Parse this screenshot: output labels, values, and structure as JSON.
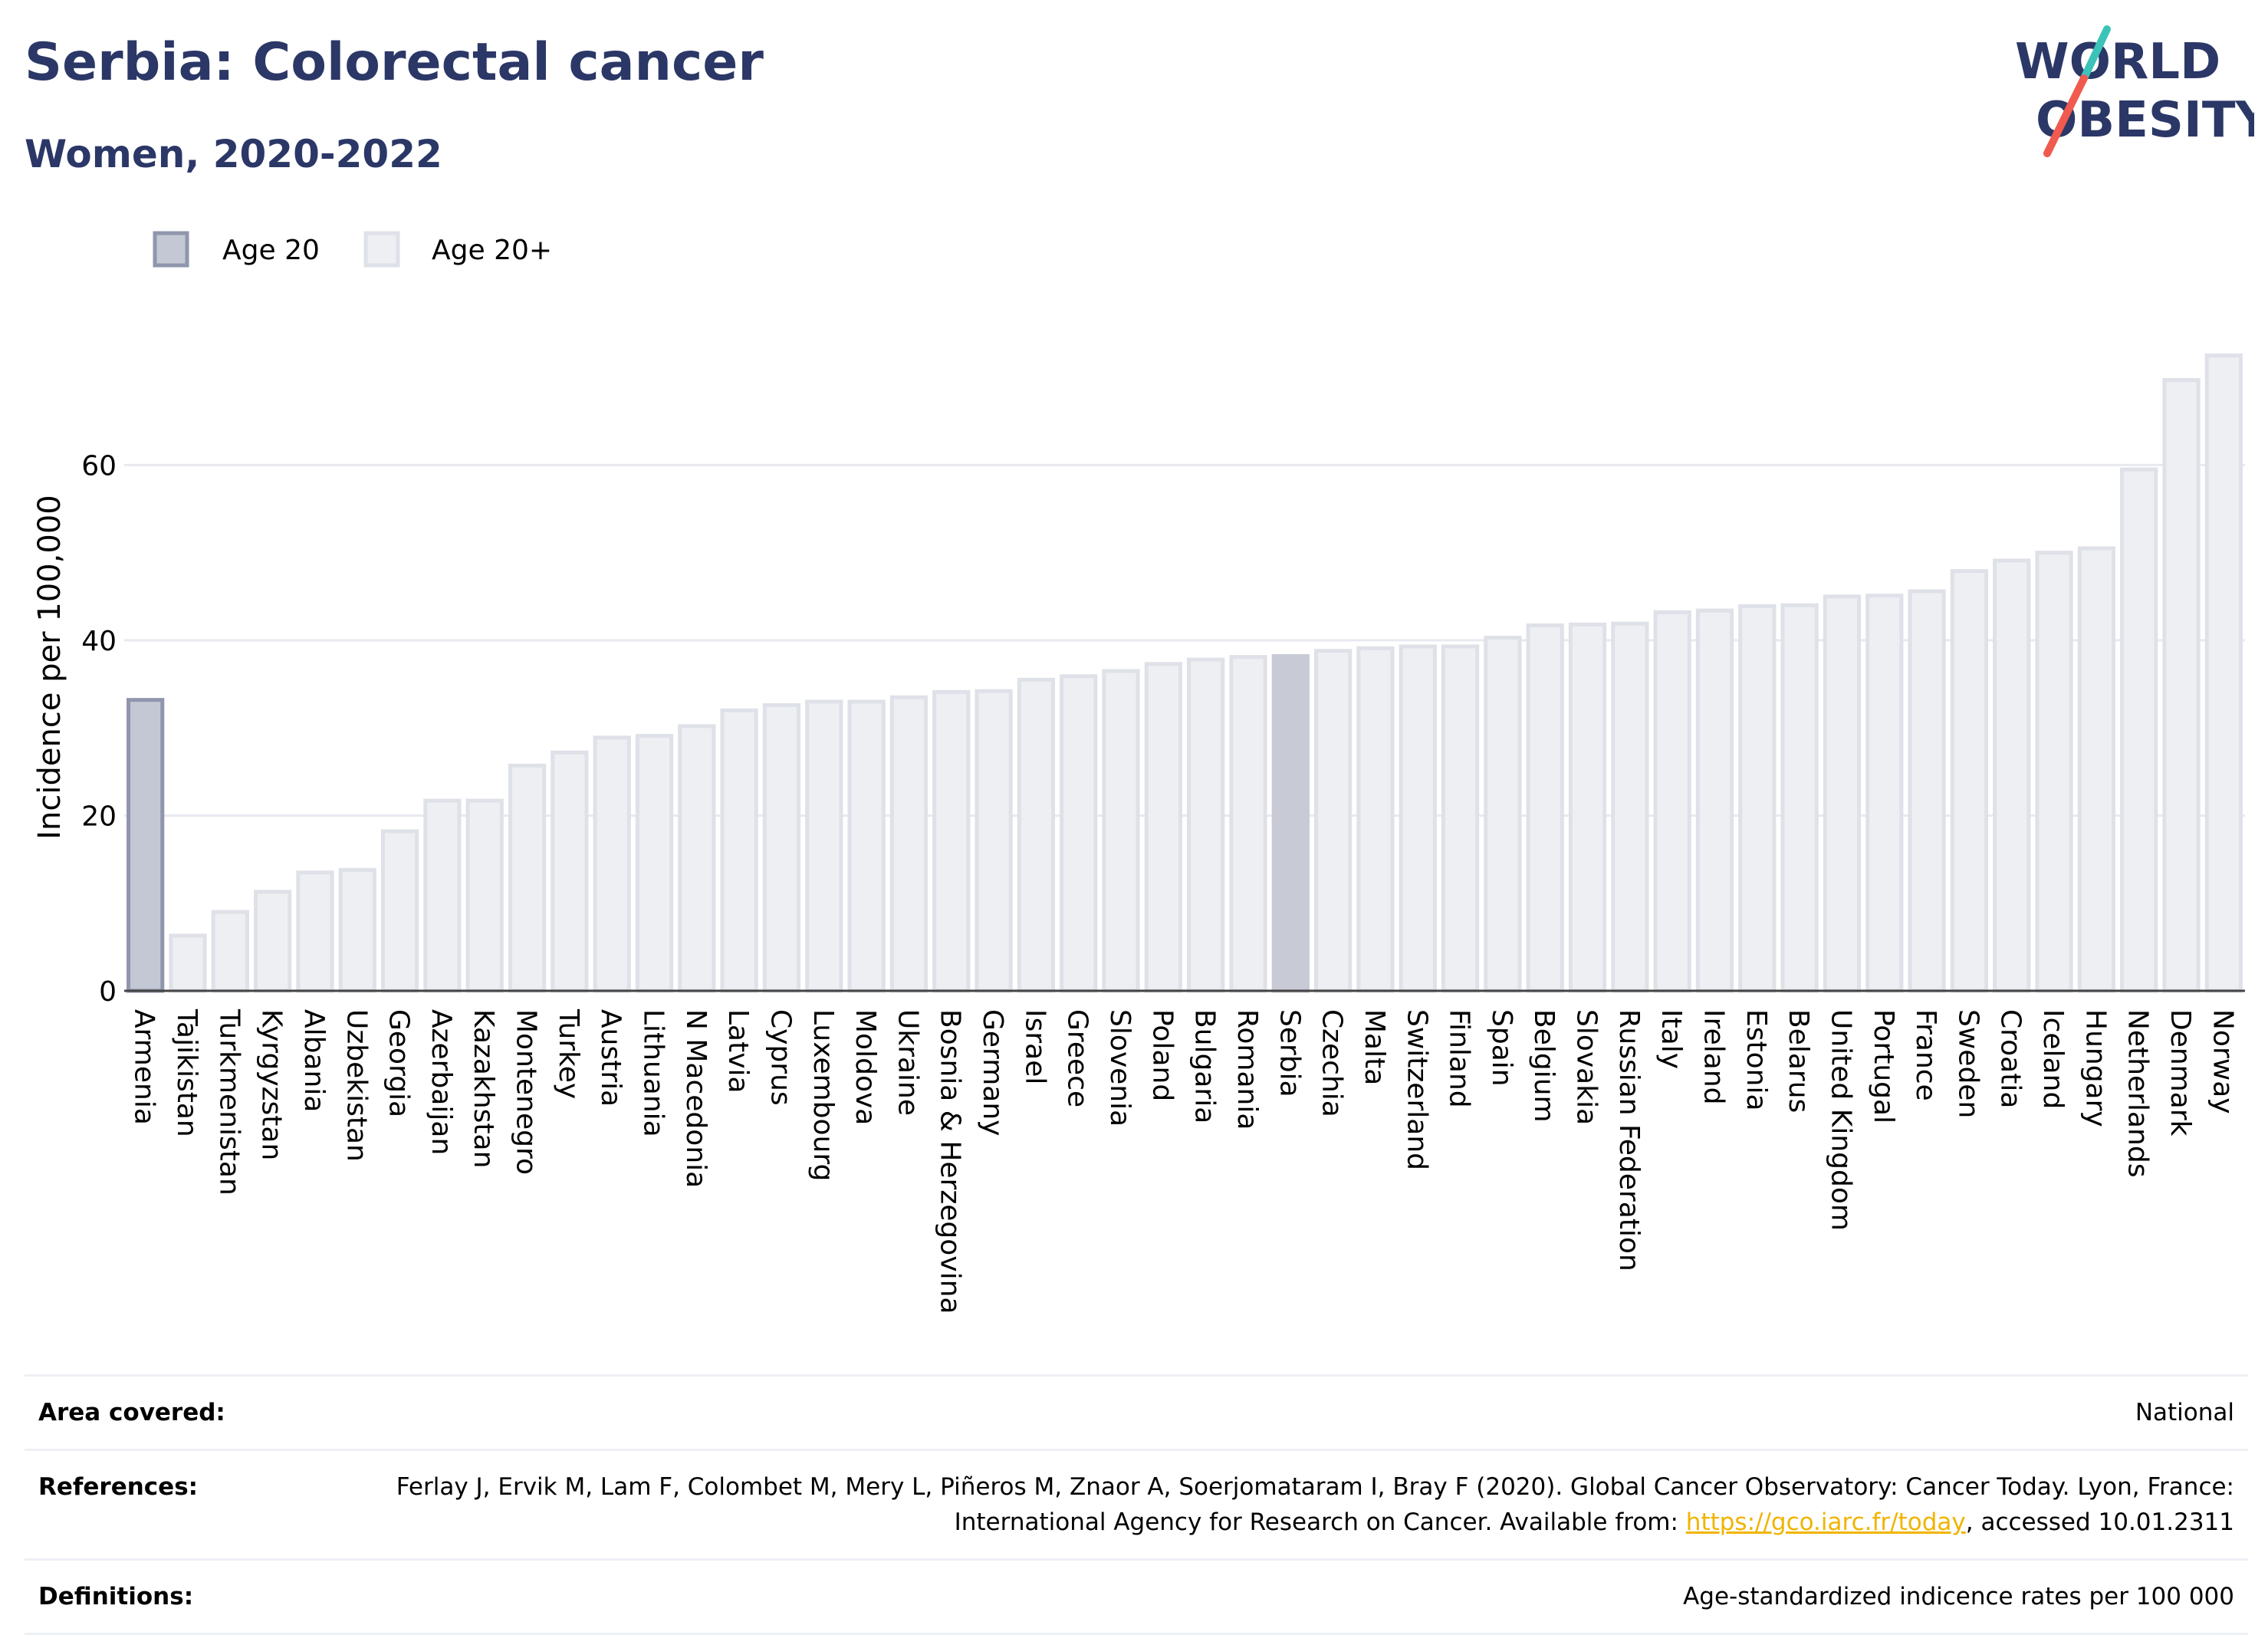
{
  "header": {
    "title": "Serbia: Colorectal cancer",
    "subtitle": "Women, 2020-2022"
  },
  "logo": {
    "line1": "WORLD",
    "line2": "OBESITY",
    "colors": {
      "text": "#2b3766",
      "slash_teal": "#3cc3b8",
      "slash_coral": "#f05a4f"
    }
  },
  "legend": {
    "items": [
      {
        "label": "Age 20",
        "color": "#c4c8d4",
        "border": "#8f96ad"
      },
      {
        "label": "Age 20+",
        "color": "#eeeff3",
        "border": "#dfe1e8"
      }
    ]
  },
  "colors": {
    "highlight_fill": "#c4c8d4",
    "highlight_stroke": "#8f96ad",
    "selected_fill": "#c8cad6",
    "bar_fill": "#eeeff3",
    "bar_stroke": "#dfe1e8",
    "grid": "#e8eaf0",
    "zero_line": "#444444",
    "axis_text": "#000000"
  },
  "chart_data": {
    "type": "bar",
    "ylabel": "Incidence per 100,000",
    "ylim": [
      0,
      75
    ],
    "yticks": [
      0,
      20,
      40,
      60
    ],
    "grid": true,
    "legend_position": "top-left",
    "categories": [
      "Armenia",
      "Tajikistan",
      "Turkmenistan",
      "Kyrgyzstan",
      "Albania",
      "Uzbekistan",
      "Georgia",
      "Azerbaijan",
      "Kazakhstan",
      "Montenegro",
      "Turkey",
      "Austria",
      "Lithuania",
      "N Macedonia",
      "Latvia",
      "Cyprus",
      "Luxembourg",
      "Moldova",
      "Ukraine",
      "Bosnia & Herzegovina",
      "Germany",
      "Israel",
      "Greece",
      "Slovenia",
      "Poland",
      "Bulgaria",
      "Romania",
      "Serbia",
      "Czechia",
      "Malta",
      "Switzerland",
      "Finland",
      "Spain",
      "Belgium",
      "Slovakia",
      "Russian Federation",
      "Italy",
      "Ireland",
      "Estonia",
      "Belarus",
      "United Kingdom",
      "Portugal",
      "France",
      "Sweden",
      "Croatia",
      "Iceland",
      "Hungary",
      "Netherlands",
      "Denmark",
      "Norway"
    ],
    "values": [
      33.2,
      6.3,
      9.0,
      11.3,
      13.5,
      13.8,
      18.2,
      21.7,
      21.7,
      25.7,
      27.2,
      28.9,
      29.1,
      30.2,
      32.0,
      32.6,
      33.0,
      33.0,
      33.5,
      34.1,
      34.2,
      35.5,
      35.9,
      36.5,
      37.3,
      37.8,
      38.1,
      38.2,
      38.8,
      39.1,
      39.3,
      39.3,
      40.3,
      41.7,
      41.8,
      41.9,
      43.2,
      43.4,
      43.9,
      44.0,
      45.0,
      45.1,
      45.6,
      47.9,
      49.1,
      50.0,
      50.5,
      59.5,
      69.7,
      72.5
    ],
    "series_type": [
      "Age 20",
      "Age 20+",
      "Age 20+",
      "Age 20+",
      "Age 20+",
      "Age 20+",
      "Age 20+",
      "Age 20+",
      "Age 20+",
      "Age 20+",
      "Age 20+",
      "Age 20+",
      "Age 20+",
      "Age 20+",
      "Age 20+",
      "Age 20+",
      "Age 20+",
      "Age 20+",
      "Age 20+",
      "Age 20+",
      "Age 20+",
      "Age 20+",
      "Age 20+",
      "Age 20+",
      "Age 20+",
      "Age 20+",
      "Age 20+",
      "Age 20+",
      "Age 20+",
      "Age 20+",
      "Age 20+",
      "Age 20+",
      "Age 20+",
      "Age 20+",
      "Age 20+",
      "Age 20+",
      "Age 20+",
      "Age 20+",
      "Age 20+",
      "Age 20+",
      "Age 20+",
      "Age 20+",
      "Age 20+",
      "Age 20+",
      "Age 20+",
      "Age 20+",
      "Age 20+",
      "Age 20+",
      "Age 20+",
      "Age 20+"
    ],
    "selected_category": "Serbia"
  },
  "meta": {
    "area_label": "Area covered:",
    "area_value": "National",
    "refs_label": "References:",
    "refs_text_1": "Ferlay J, Ervik M, Lam F, Colombet M, Mery L, Piñeros M, Znaor A, Soerjomataram I, Bray F (2020). Global Cancer Observatory: Cancer Today. Lyon, France: International Agency for Research on Cancer. Available from: ",
    "refs_link": "https://gco.iarc.fr/today",
    "refs_text_2": ", accessed 10.01.2311",
    "defs_label": "Definitions:",
    "defs_value": "Age-standardized indicence rates per 100 000"
  }
}
